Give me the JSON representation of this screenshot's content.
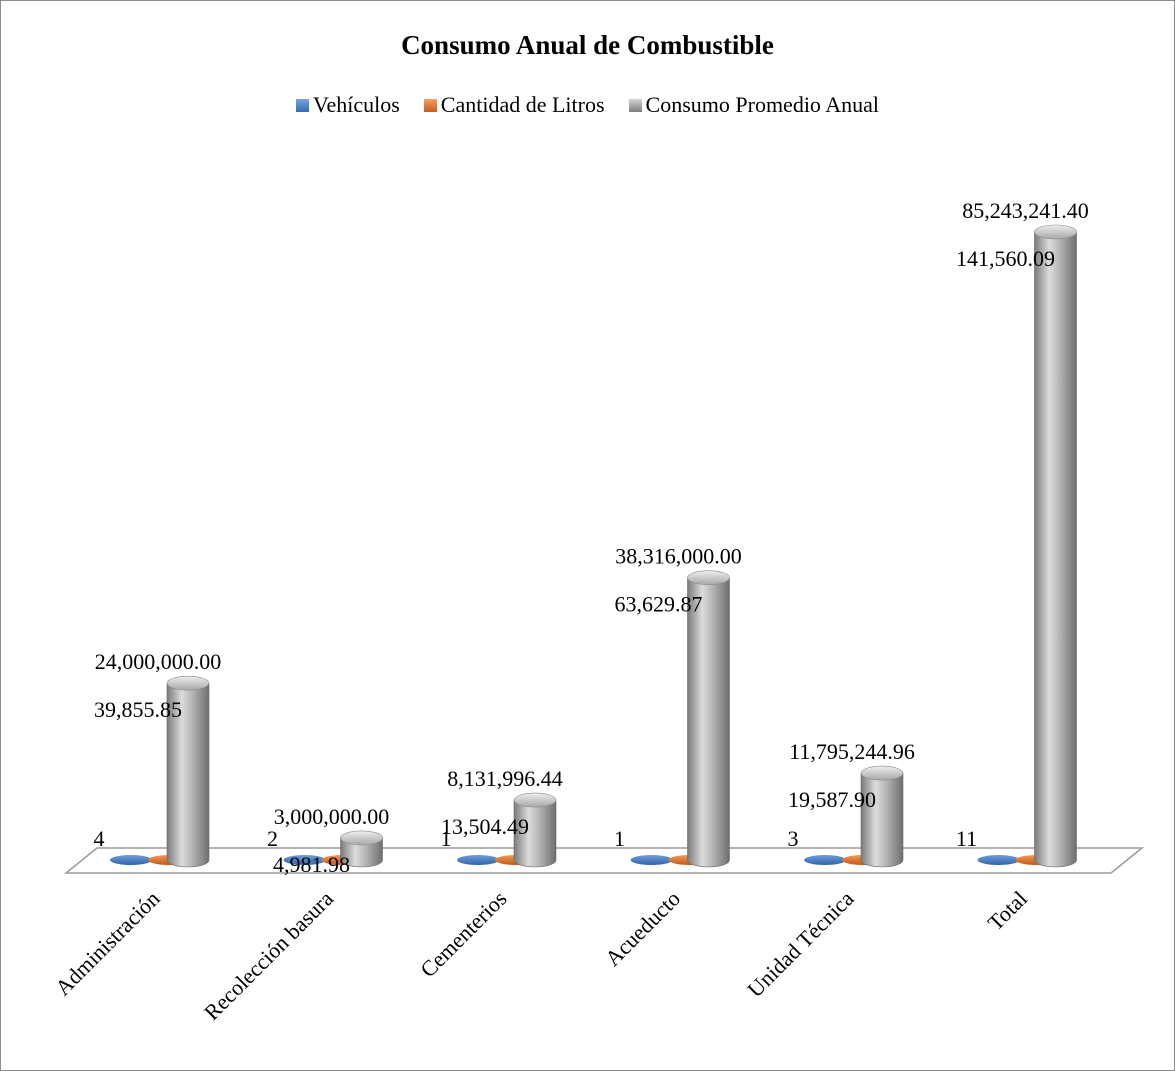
{
  "chart_data": {
    "type": "bar",
    "title": "Consumo Anual de Combustible",
    "categories": [
      "Administración",
      "Recolección basura",
      "Cementerios",
      "Acueducto",
      "Unidad Técnica",
      "Total"
    ],
    "series": [
      {
        "name": "Vehículos",
        "values": [
          4,
          2,
          1,
          1,
          3,
          11
        ],
        "labels": [
          "4",
          "2",
          "1",
          "1",
          "3",
          "11"
        ],
        "color": "#4a7fc0"
      },
      {
        "name": "Cantidad de Litros",
        "values": [
          39855.85,
          4981.98,
          13504.49,
          63629.87,
          19587.9,
          141560.09
        ],
        "labels": [
          "39,855.85",
          "4,981.98",
          "13,504.49",
          "63,629.87",
          "19,587.90",
          "141,560.09"
        ],
        "color": "#e0762f"
      },
      {
        "name": "Consumo Promedio Anual",
        "values": [
          24000000.0,
          3000000.0,
          8131996.44,
          38316000.0,
          11795244.96,
          85243241.4
        ],
        "labels": [
          "24,000,000.00",
          "3,000,000.00",
          "8,131,996.44",
          "38,316,000.00",
          "11,795,244.96",
          "85,243,241.40"
        ],
        "color": "#a6a6a6"
      }
    ],
    "grid": false,
    "legend_position": "top"
  }
}
